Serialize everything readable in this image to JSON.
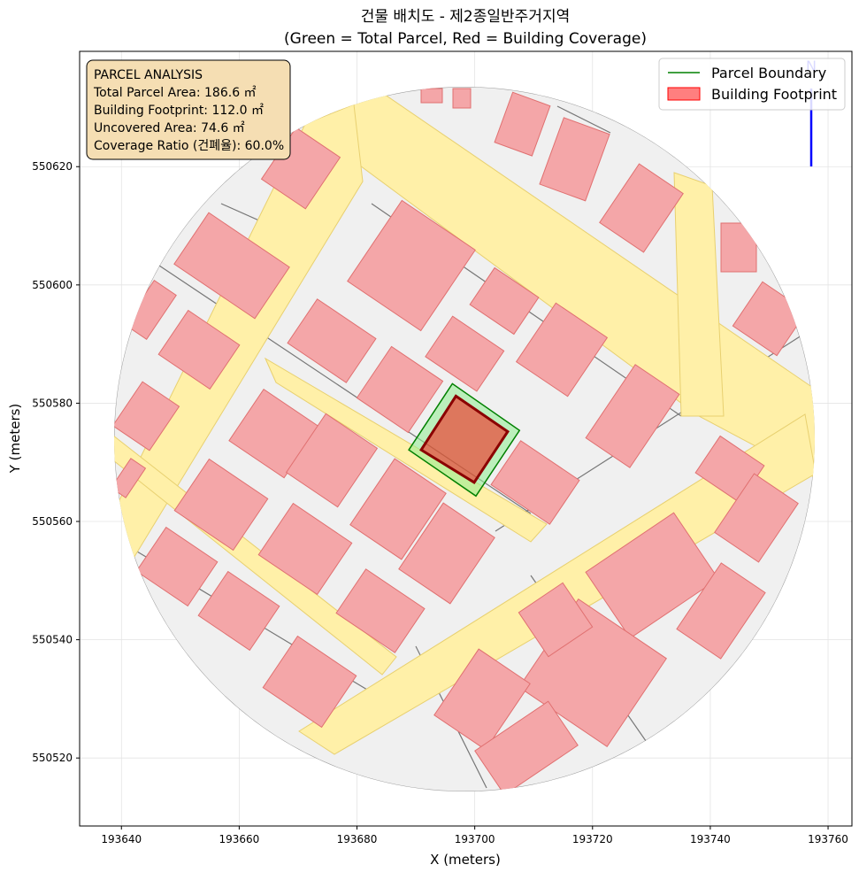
{
  "chart_data": {
    "type": "polygon",
    "title": "건물 배치도 - 제2종일반주거지역",
    "subtitle": "(Green = Total Parcel, Red = Building Coverage)",
    "x_label": "X (meters)",
    "y_label": "Y (meters)",
    "xlim": [
      193632.9,
      193764.05
    ],
    "ylim": [
      550508.5,
      550639.5
    ],
    "xticks": [
      193640,
      193660,
      193680,
      193700,
      193720,
      193740,
      193760
    ],
    "yticks": [
      550520,
      550540,
      550560,
      550580,
      550600,
      550620
    ],
    "grid": true,
    "legend": "upper right",
    "series": [
      {
        "name": "Parcel Boundary",
        "color": "#008000",
        "x": [
          193688.8,
          193696.2,
          193707.6,
          193700.2
        ],
        "y": [
          550572.1,
          550583.3,
          550575.4,
          550564.3
        ]
      },
      {
        "name": "Building Footprint",
        "color": "#ff0000",
        "x": [
          193690.9,
          193696.8,
          193705.6,
          193699.9
        ],
        "y": [
          550572.1,
          550581.2,
          550575.2,
          550566.6
        ]
      }
    ],
    "info_box": [
      "PARCEL ANALYSIS",
      "Total Parcel Area: 186.6 ㎡",
      "Building Footprint: 112.0 ㎡",
      "Uncovered Area: 74.6 ㎡",
      "Coverage Ratio (건폐율): 60.0%"
    ],
    "north_label": "N"
  }
}
